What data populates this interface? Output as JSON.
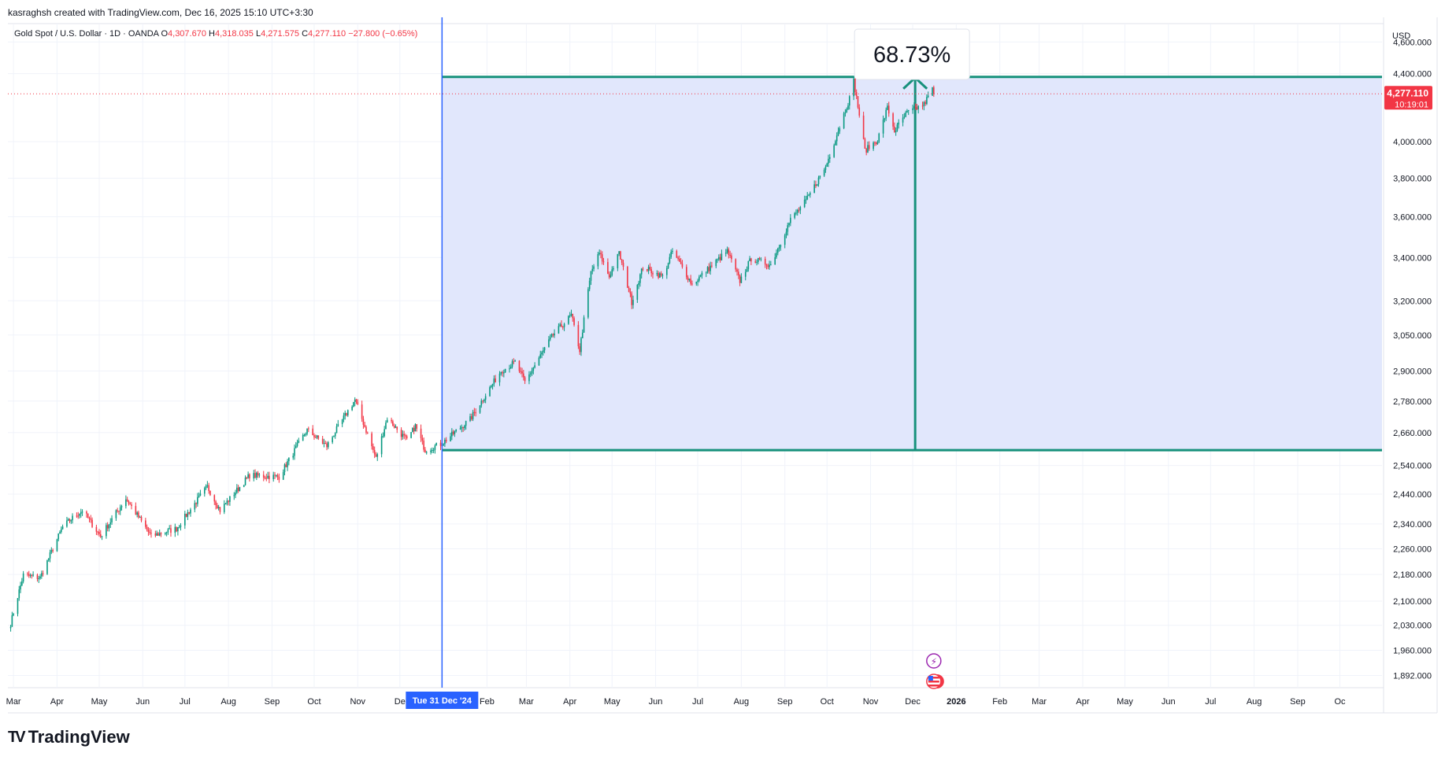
{
  "header": {
    "credit": "kasraghsh created with TradingView.com, Dec 16, 2025 15:10 UTC+3:30"
  },
  "legend": {
    "symbol": "Gold Spot / U.S. Dollar · 1D · OANDA",
    "open_label": "O",
    "open": "4,307.670",
    "high_label": "H",
    "high": "4,318.035",
    "low_label": "L",
    "low": "4,271.575",
    "close_label": "C",
    "close": "4,277.110",
    "change": "−27.800 (−0.65%)"
  },
  "measure": {
    "percent_label": "68.73%",
    "top_price": 4380,
    "bottom_price": 2595,
    "start_date": "2024-12-31",
    "end_date": "2026-10-31"
  },
  "crosshair": {
    "date_label": "Tue 31 Dec '24"
  },
  "price_badge": {
    "price": "4,277.110",
    "countdown": "10:19:01"
  },
  "brand": {
    "name": "TradingView",
    "logo_text": "TV"
  },
  "icons": {
    "event_icon": "lightning-icon",
    "flag_icon": "us-flag-icon"
  },
  "colors": {
    "up": "#089981",
    "down": "#f23645",
    "measure_fill": "#dfe6fc",
    "measure_line": "#17917c",
    "crosshair": "#2962ff",
    "badge": "#f23645"
  },
  "chart_data": {
    "type": "candlestick",
    "title": "Gold Spot / U.S. Dollar · 1D · OANDA",
    "y_axis_label": "USD",
    "y_scale": "log",
    "ylim": [
      1860,
      4720
    ],
    "y_ticks": [
      1892,
      1960,
      2030,
      2100,
      2180,
      2260,
      2340,
      2440,
      2540,
      2660,
      2780,
      2900,
      3050,
      3200,
      3400,
      3600,
      3800,
      4000,
      4400,
      4600
    ],
    "y_tick_labels": [
      "1,892.000",
      "1,960.000",
      "2,030.000",
      "2,100.000",
      "2,180.000",
      "2,260.000",
      "2,340.000",
      "2,440.000",
      "2,540.000",
      "2,660.000",
      "2,780.000",
      "2,900.000",
      "3,050.000",
      "3,200.000",
      "3,400.000",
      "3,600.000",
      "3,800.000",
      "4,000.000",
      "4,400.000",
      "4,600.000"
    ],
    "xlim": [
      "2024-02-26",
      "2026-10-31"
    ],
    "x_ticks": [
      "2024-03-01",
      "2024-04-01",
      "2024-05-01",
      "2024-06-01",
      "2024-07-01",
      "2024-08-01",
      "2024-09-01",
      "2024-10-01",
      "2024-11-01",
      "2024-12-01",
      "2025-02-01",
      "2025-03-01",
      "2025-04-01",
      "2025-05-01",
      "2025-06-01",
      "2025-07-01",
      "2025-08-01",
      "2025-09-01",
      "2025-10-01",
      "2025-11-01",
      "2025-12-01",
      "2026-01-01",
      "2026-02-01",
      "2026-03-01",
      "2026-04-01",
      "2026-05-01",
      "2026-06-01",
      "2026-07-01",
      "2026-08-01",
      "2026-09-01",
      "2026-10-01"
    ],
    "x_tick_labels": [
      "Mar",
      "Apr",
      "May",
      "Jun",
      "Jul",
      "Aug",
      "Sep",
      "Oct",
      "Nov",
      "De",
      "Feb",
      "Mar",
      "Apr",
      "May",
      "Jun",
      "Jul",
      "Aug",
      "Sep",
      "Oct",
      "Nov",
      "Dec",
      "2026",
      "Feb",
      "Mar",
      "Apr",
      "May",
      "Jun",
      "Jul",
      "Aug",
      "Sep",
      "Oc"
    ],
    "close_keypoints": [
      [
        "2024-02-28",
        2035
      ],
      [
        "2024-03-08",
        2178
      ],
      [
        "2024-03-20",
        2170
      ],
      [
        "2024-04-05",
        2330
      ],
      [
        "2024-04-12",
        2360
      ],
      [
        "2024-04-19",
        2385
      ],
      [
        "2024-05-02",
        2300
      ],
      [
        "2024-05-20",
        2425
      ],
      [
        "2024-06-07",
        2300
      ],
      [
        "2024-06-25",
        2325
      ],
      [
        "2024-07-17",
        2465
      ],
      [
        "2024-07-26",
        2385
      ],
      [
        "2024-08-16",
        2505
      ],
      [
        "2024-09-06",
        2500
      ],
      [
        "2024-09-26",
        2670
      ],
      [
        "2024-10-10",
        2610
      ],
      [
        "2024-10-30",
        2785
      ],
      [
        "2024-11-14",
        2565
      ],
      [
        "2024-11-22",
        2715
      ],
      [
        "2024-12-06",
        2630
      ],
      [
        "2024-12-12",
        2685
      ],
      [
        "2024-12-19",
        2595
      ],
      [
        "2024-12-31",
        2620
      ],
      [
        "2025-01-20",
        2710
      ],
      [
        "2025-02-11",
        2900
      ],
      [
        "2025-02-21",
        2935
      ],
      [
        "2025-02-28",
        2855
      ],
      [
        "2025-03-20",
        3050
      ],
      [
        "2025-04-02",
        3135
      ],
      [
        "2025-04-08",
        2985
      ],
      [
        "2025-04-16",
        3330
      ],
      [
        "2025-04-22",
        3420
      ],
      [
        "2025-04-29",
        3310
      ],
      [
        "2025-05-06",
        3420
      ],
      [
        "2025-05-15",
        3195
      ],
      [
        "2025-05-23",
        3355
      ],
      [
        "2025-06-06",
        3310
      ],
      [
        "2025-06-13",
        3430
      ],
      [
        "2025-06-27",
        3275
      ],
      [
        "2025-07-22",
        3430
      ],
      [
        "2025-07-31",
        3290
      ],
      [
        "2025-08-08",
        3395
      ],
      [
        "2025-08-22",
        3365
      ],
      [
        "2025-09-05",
        3585
      ],
      [
        "2025-09-16",
        3680
      ],
      [
        "2025-09-30",
        3860
      ],
      [
        "2025-10-08",
        4040
      ],
      [
        "2025-10-17",
        4250
      ],
      [
        "2025-10-20",
        4355
      ],
      [
        "2025-10-28",
        3950
      ],
      [
        "2025-11-06",
        4010
      ],
      [
        "2025-11-13",
        4195
      ],
      [
        "2025-11-18",
        4060
      ],
      [
        "2025-11-27",
        4165
      ],
      [
        "2025-12-09",
        4215
      ],
      [
        "2025-12-15",
        4305
      ],
      [
        "2025-12-16",
        4277.11
      ]
    ],
    "last_price": 4277.11
  }
}
